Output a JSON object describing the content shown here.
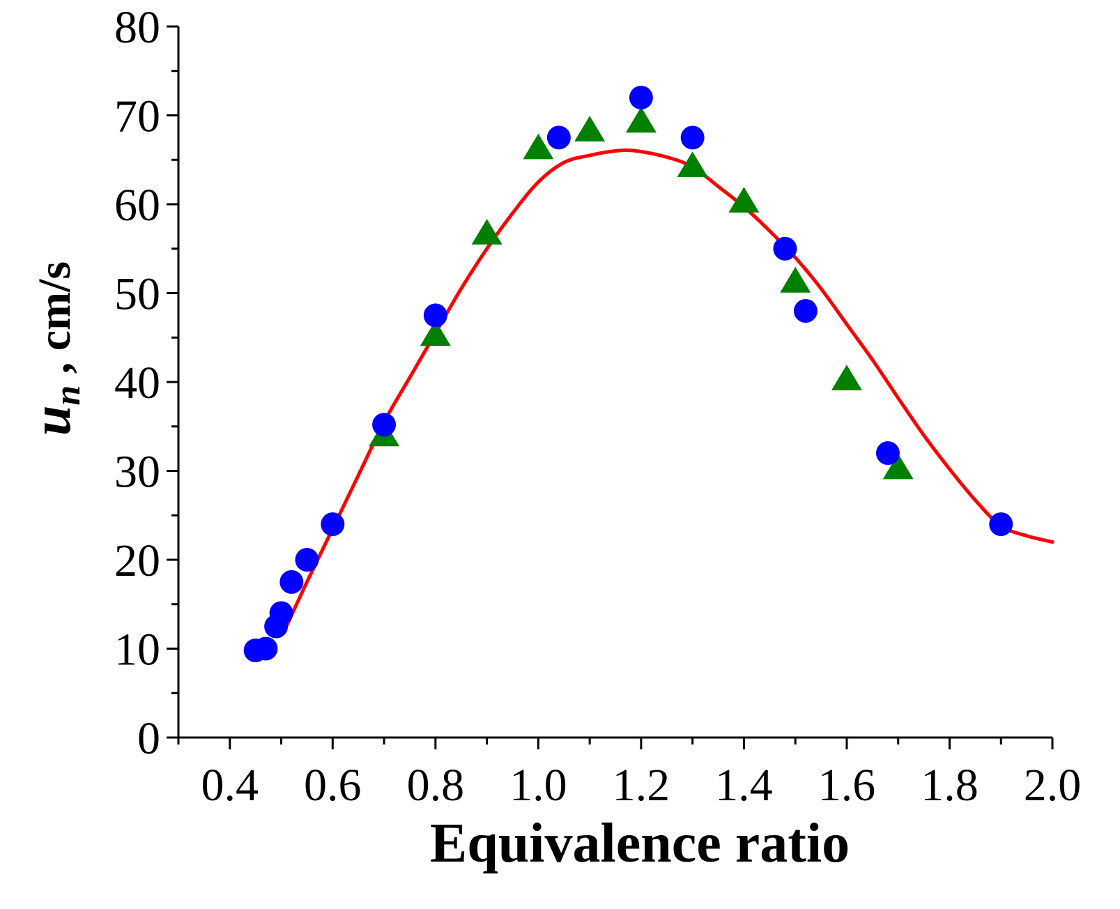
{
  "chart_data": {
    "type": "scatter",
    "title": "",
    "xlabel": "Equivalence ratio",
    "ylabel": {
      "symbol": "u",
      "subscript": "n",
      "suffix": " , cm/s"
    },
    "xlim": [
      0.3,
      2.0
    ],
    "ylim": [
      0,
      80
    ],
    "x_ticks": [
      0.4,
      0.6,
      0.8,
      1.0,
      1.2,
      1.4,
      1.6,
      1.8,
      2.0
    ],
    "x_tick_labels": [
      "0.4",
      "0.6",
      "0.8",
      "1.0",
      "1.2",
      "1.4",
      "1.6",
      "1.8",
      "2.0"
    ],
    "y_ticks": [
      0,
      10,
      20,
      30,
      40,
      50,
      60,
      70,
      80
    ],
    "y_tick_labels": [
      "0",
      "10",
      "20",
      "30",
      "40",
      "50",
      "60",
      "70",
      "80"
    ],
    "grid": false,
    "series": [
      {
        "name": "circles",
        "marker": "circle",
        "color": "#0000ff",
        "x": [
          0.45,
          0.47,
          0.49,
          0.5,
          0.52,
          0.55,
          0.6,
          0.7,
          0.8,
          1.04,
          1.2,
          1.3,
          1.48,
          1.52,
          1.68,
          1.9
        ],
        "y": [
          9.8,
          10,
          12.5,
          14,
          17.5,
          20,
          24,
          35.2,
          47.5,
          67.5,
          72,
          67.5,
          55,
          48,
          32,
          24
        ]
      },
      {
        "name": "triangles",
        "marker": "triangle",
        "color": "#008000",
        "x": [
          0.7,
          0.8,
          0.9,
          1.0,
          1.1,
          1.2,
          1.3,
          1.4,
          1.5,
          1.6,
          1.7
        ],
        "y": [
          34,
          45.3,
          56.7,
          66.3,
          68.3,
          69.3,
          64.3,
          60.3,
          51.3,
          40.3,
          30.3
        ]
      },
      {
        "name": "curve",
        "marker": "line",
        "color": "#ff0000",
        "x": [
          0.51,
          0.55,
          0.6,
          0.65,
          0.7,
          0.75,
          0.8,
          0.85,
          0.9,
          0.95,
          1.0,
          1.05,
          1.1,
          1.15,
          1.19,
          1.25,
          1.3,
          1.35,
          1.4,
          1.45,
          1.5,
          1.55,
          1.6,
          1.65,
          1.7,
          1.75,
          1.8,
          1.85,
          1.9,
          1.95,
          2.0
        ],
        "y": [
          12.5,
          17.5,
          23.5,
          29.5,
          35.5,
          40.5,
          45.5,
          50.5,
          55,
          59,
          62.5,
          64.7,
          65.5,
          66,
          66,
          65.3,
          64.2,
          62,
          59.7,
          57,
          54,
          50.5,
          46.5,
          42.5,
          38.2,
          34,
          30.2,
          26.7,
          23.8,
          22.7,
          22
        ]
      }
    ]
  }
}
